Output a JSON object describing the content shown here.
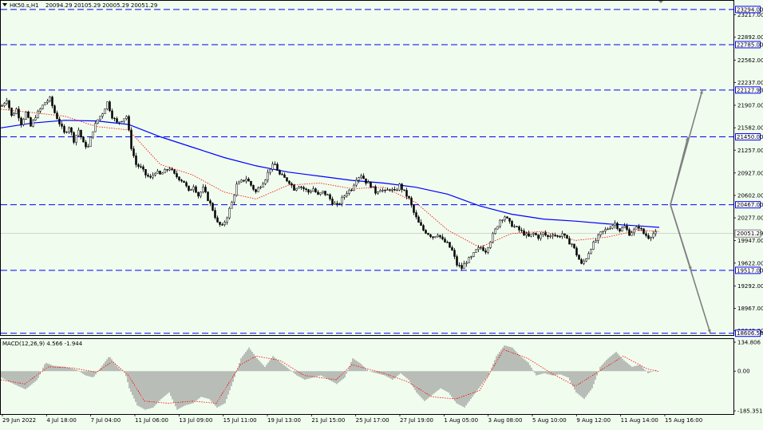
{
  "header": {
    "symbol_info": "HK50.s,H1",
    "ohlc": "20094.29 20105.29 20005.29 20051.29"
  },
  "indicator_label": "MACD(12,26,9) 4.566 -1.944",
  "colors": {
    "background": "#f0fcee",
    "candle": "#000000",
    "ma_slow": "#0000ff",
    "ma_fast": "#ff0000",
    "level_line": "#0000ff",
    "arrow": "#808080",
    "macd_hist": "#808080",
    "macd_signal": "#ff0000",
    "price_tag_bg": "#0000ff",
    "current_tag_bg": "#ffffff"
  },
  "chart_data": [
    {
      "type": "candlestick",
      "y_ticks": [
        "23217.00",
        "22892.00",
        "22562.00",
        "22237.00",
        "21907.00",
        "21582.00",
        "21257.00",
        "20927.00",
        "20602.00",
        "20277.00",
        "19947.00",
        "19622.00",
        "19292.00",
        "18967.00",
        "18642.00"
      ],
      "ylim": [
        18580,
        23420
      ],
      "x_ticks": [
        "29 Jun 2022",
        "4 Jul 18:00",
        "7 Jul 04:00",
        "11 Jul 06:00",
        "13 Jul 09:00",
        "15 Jul 11:00",
        "19 Jul 13:00",
        "21 Jul 15:00",
        "25 Jul 17:00",
        "27 Jul 19:00",
        "1 Aug 05:00",
        "3 Aug 08:00",
        "5 Aug 10:00",
        "9 Aug 12:00",
        "11 Aug 14:00",
        "15 Aug 16:00"
      ],
      "levels": [
        {
          "price": 23294.0,
          "label": "23294.00"
        },
        {
          "price": 22785.0,
          "label": "22785.00"
        },
        {
          "price": 22127.93,
          "label": "22127.93"
        },
        {
          "price": 21450.0,
          "label": "21450.00"
        },
        {
          "price": 20467.0,
          "label": "20467.00"
        },
        {
          "price": 19517.0,
          "label": "19517.00"
        },
        {
          "price": 18606.58,
          "label": "18606.58"
        }
      ],
      "current_price": {
        "price": 20051.29,
        "label": "20051.29"
      },
      "close_path": [
        [
          0,
          21900
        ],
        [
          6,
          22000
        ],
        [
          12,
          21750
        ],
        [
          18,
          21850
        ],
        [
          24,
          21650
        ],
        [
          30,
          21800
        ],
        [
          36,
          21600
        ],
        [
          42,
          21750
        ],
        [
          48,
          21850
        ],
        [
          54,
          21950
        ],
        [
          60,
          22000
        ],
        [
          66,
          21800
        ],
        [
          72,
          21650
        ],
        [
          78,
          21500
        ],
        [
          84,
          21600
        ],
        [
          90,
          21400
        ],
        [
          96,
          21550
        ],
        [
          102,
          21350
        ],
        [
          108,
          21300
        ],
        [
          114,
          21550
        ],
        [
          120,
          21700
        ],
        [
          126,
          21800
        ],
        [
          132,
          21950
        ],
        [
          138,
          21750
        ],
        [
          144,
          21650
        ],
        [
          150,
          21700
        ],
        [
          156,
          21750
        ],
        [
          162,
          21300
        ],
        [
          168,
          21050
        ],
        [
          174,
          21000
        ],
        [
          180,
          20900
        ],
        [
          186,
          20850
        ],
        [
          192,
          20950
        ],
        [
          198,
          20900
        ],
        [
          204,
          20950
        ],
        [
          210,
          21000
        ],
        [
          216,
          20900
        ],
        [
          222,
          20850
        ],
        [
          228,
          20800
        ],
        [
          234,
          20650
        ],
        [
          240,
          20750
        ],
        [
          246,
          20600
        ],
        [
          252,
          20700
        ],
        [
          258,
          20550
        ],
        [
          264,
          20400
        ],
        [
          270,
          20200
        ],
        [
          276,
          20150
        ],
        [
          282,
          20300
        ],
        [
          288,
          20500
        ],
        [
          294,
          20750
        ],
        [
          300,
          20800
        ],
        [
          306,
          20850
        ],
        [
          312,
          20750
        ],
        [
          318,
          20650
        ],
        [
          324,
          20750
        ],
        [
          330,
          20850
        ],
        [
          336,
          21000
        ],
        [
          342,
          21050
        ],
        [
          348,
          20900
        ],
        [
          354,
          20850
        ],
        [
          360,
          20800
        ],
        [
          366,
          20700
        ],
        [
          372,
          20750
        ],
        [
          378,
          20700
        ],
        [
          384,
          20650
        ],
        [
          390,
          20700
        ],
        [
          396,
          20600
        ],
        [
          402,
          20650
        ],
        [
          408,
          20600
        ],
        [
          414,
          20500
        ],
        [
          420,
          20450
        ],
        [
          426,
          20550
        ],
        [
          432,
          20650
        ],
        [
          438,
          20700
        ],
        [
          444,
          20850
        ],
        [
          450,
          20900
        ],
        [
          456,
          20800
        ],
        [
          462,
          20750
        ],
        [
          468,
          20650
        ],
        [
          474,
          20700
        ],
        [
          480,
          20650
        ],
        [
          486,
          20700
        ],
        [
          492,
          20650
        ],
        [
          498,
          20750
        ],
        [
          504,
          20650
        ],
        [
          510,
          20550
        ],
        [
          516,
          20350
        ],
        [
          522,
          20200
        ],
        [
          528,
          20100
        ],
        [
          534,
          20050
        ],
        [
          540,
          20000
        ],
        [
          546,
          20050
        ],
        [
          552,
          19950
        ],
        [
          558,
          19900
        ],
        [
          564,
          19800
        ],
        [
          570,
          19600
        ],
        [
          576,
          19550
        ],
        [
          582,
          19650
        ],
        [
          588,
          19700
        ],
        [
          594,
          19800
        ],
        [
          600,
          19850
        ],
        [
          606,
          19800
        ],
        [
          612,
          19950
        ],
        [
          618,
          20100
        ],
        [
          624,
          20250
        ],
        [
          630,
          20300
        ],
        [
          636,
          20200
        ],
        [
          642,
          20150
        ],
        [
          648,
          20100
        ],
        [
          654,
          20050
        ],
        [
          660,
          20000
        ],
        [
          666,
          20050
        ],
        [
          672,
          20000
        ],
        [
          678,
          20050
        ],
        [
          684,
          20000
        ],
        [
          690,
          20050
        ],
        [
          696,
          20000
        ],
        [
          702,
          20050
        ],
        [
          708,
          19950
        ],
        [
          714,
          19900
        ],
        [
          720,
          19750
        ],
        [
          726,
          19600
        ],
        [
          732,
          19700
        ],
        [
          738,
          19850
        ],
        [
          744,
          19950
        ],
        [
          750,
          20050
        ],
        [
          756,
          20100
        ],
        [
          762,
          20150
        ],
        [
          768,
          20200
        ],
        [
          774,
          20100
        ],
        [
          780,
          20150
        ],
        [
          786,
          20050
        ],
        [
          792,
          20100
        ],
        [
          798,
          20150
        ],
        [
          804,
          20050
        ],
        [
          810,
          20000
        ],
        [
          816,
          20050
        ],
        [
          820,
          20051.29
        ]
      ],
      "ma_slow_path": [
        [
          0,
          21580
        ],
        [
          40,
          21650
        ],
        [
          80,
          21690
        ],
        [
          120,
          21680
        ],
        [
          160,
          21630
        ],
        [
          200,
          21450
        ],
        [
          240,
          21300
        ],
        [
          280,
          21150
        ],
        [
          320,
          21030
        ],
        [
          360,
          20940
        ],
        [
          400,
          20880
        ],
        [
          440,
          20820
        ],
        [
          480,
          20780
        ],
        [
          520,
          20720
        ],
        [
          560,
          20620
        ],
        [
          600,
          20450
        ],
        [
          640,
          20330
        ],
        [
          680,
          20260
        ],
        [
          720,
          20230
        ],
        [
          760,
          20190
        ],
        [
          800,
          20160
        ],
        [
          825,
          20140
        ]
      ],
      "ma_fast_path": [
        [
          0,
          21850
        ],
        [
          40,
          21800
        ],
        [
          80,
          21750
        ],
        [
          120,
          21600
        ],
        [
          160,
          21550
        ],
        [
          200,
          21050
        ],
        [
          240,
          20900
        ],
        [
          280,
          20650
        ],
        [
          320,
          20550
        ],
        [
          360,
          20750
        ],
        [
          400,
          20780
        ],
        [
          440,
          20700
        ],
        [
          480,
          20720
        ],
        [
          520,
          20500
        ],
        [
          560,
          20100
        ],
        [
          600,
          19850
        ],
        [
          640,
          20050
        ],
        [
          680,
          20080
        ],
        [
          720,
          19950
        ],
        [
          760,
          20000
        ],
        [
          800,
          20100
        ],
        [
          825,
          20080
        ]
      ],
      "arrows": [
        {
          "from": [
            840,
            20467
          ],
          "to": [
            880,
            22127.93
          ]
        },
        {
          "from": [
            840,
            20467
          ],
          "to": [
            862,
            21450
          ]
        },
        {
          "from": [
            840,
            20467
          ],
          "to": [
            866,
            19517
          ]
        },
        {
          "from": [
            840,
            20467
          ],
          "to": [
            890,
            18606.58
          ]
        }
      ]
    },
    {
      "type": "bar",
      "name": "MACD(12,26,9)",
      "y_ticks": [
        "134.806",
        "0.00",
        "-185.351"
      ],
      "ylim": [
        -185.351,
        134.806
      ],
      "hist_path": [
        [
          0,
          -30
        ],
        [
          15,
          -60
        ],
        [
          30,
          -85
        ],
        [
          45,
          -40
        ],
        [
          55,
          40
        ],
        [
          65,
          25
        ],
        [
          80,
          20
        ],
        [
          95,
          5
        ],
        [
          105,
          -20
        ],
        [
          115,
          -30
        ],
        [
          125,
          20
        ],
        [
          135,
          70
        ],
        [
          145,
          20
        ],
        [
          155,
          -10
        ],
        [
          160,
          -80
        ],
        [
          170,
          -160
        ],
        [
          180,
          -180
        ],
        [
          190,
          -170
        ],
        [
          200,
          -130
        ],
        [
          210,
          -100
        ],
        [
          220,
          -180
        ],
        [
          230,
          -160
        ],
        [
          240,
          -150
        ],
        [
          250,
          -120
        ],
        [
          260,
          -130
        ],
        [
          270,
          -170
        ],
        [
          280,
          -150
        ],
        [
          290,
          -50
        ],
        [
          300,
          60
        ],
        [
          310,
          110
        ],
        [
          320,
          60
        ],
        [
          330,
          20
        ],
        [
          340,
          70
        ],
        [
          350,
          40
        ],
        [
          360,
          10
        ],
        [
          370,
          -20
        ],
        [
          380,
          -40
        ],
        [
          390,
          -30
        ],
        [
          400,
          -20
        ],
        [
          410,
          -40
        ],
        [
          420,
          -60
        ],
        [
          430,
          -30
        ],
        [
          440,
          60
        ],
        [
          450,
          35
        ],
        [
          460,
          0
        ],
        [
          470,
          -10
        ],
        [
          480,
          -20
        ],
        [
          490,
          -40
        ],
        [
          500,
          -10
        ],
        [
          510,
          -40
        ],
        [
          520,
          -100
        ],
        [
          530,
          -140
        ],
        [
          540,
          -110
        ],
        [
          550,
          -80
        ],
        [
          560,
          -100
        ],
        [
          570,
          -150
        ],
        [
          580,
          -170
        ],
        [
          590,
          -120
        ],
        [
          600,
          -70
        ],
        [
          610,
          -20
        ],
        [
          620,
          70
        ],
        [
          630,
          120
        ],
        [
          640,
          110
        ],
        [
          650,
          70
        ],
        [
          660,
          40
        ],
        [
          670,
          -20
        ],
        [
          680,
          -10
        ],
        [
          690,
          -20
        ],
        [
          700,
          -15
        ],
        [
          710,
          -30
        ],
        [
          720,
          -100
        ],
        [
          730,
          -130
        ],
        [
          740,
          -80
        ],
        [
          750,
          20
        ],
        [
          760,
          60
        ],
        [
          770,
          90
        ],
        [
          780,
          50
        ],
        [
          790,
          20
        ],
        [
          800,
          30
        ],
        [
          810,
          -10
        ],
        [
          820,
          4.566
        ]
      ],
      "signal_path": [
        [
          0,
          -40
        ],
        [
          30,
          -60
        ],
        [
          60,
          20
        ],
        [
          90,
          15
        ],
        [
          120,
          -5
        ],
        [
          140,
          45
        ],
        [
          160,
          -20
        ],
        [
          180,
          -140
        ],
        [
          210,
          -150
        ],
        [
          240,
          -140
        ],
        [
          270,
          -150
        ],
        [
          300,
          30
        ],
        [
          320,
          70
        ],
        [
          350,
          50
        ],
        [
          380,
          -20
        ],
        [
          420,
          -40
        ],
        [
          440,
          30
        ],
        [
          480,
          -10
        ],
        [
          510,
          -50
        ],
        [
          540,
          -120
        ],
        [
          570,
          -130
        ],
        [
          600,
          -90
        ],
        [
          630,
          100
        ],
        [
          660,
          60
        ],
        [
          690,
          -10
        ],
        [
          720,
          -70
        ],
        [
          750,
          0
        ],
        [
          780,
          70
        ],
        [
          810,
          10
        ],
        [
          825,
          -1.944
        ]
      ]
    }
  ]
}
